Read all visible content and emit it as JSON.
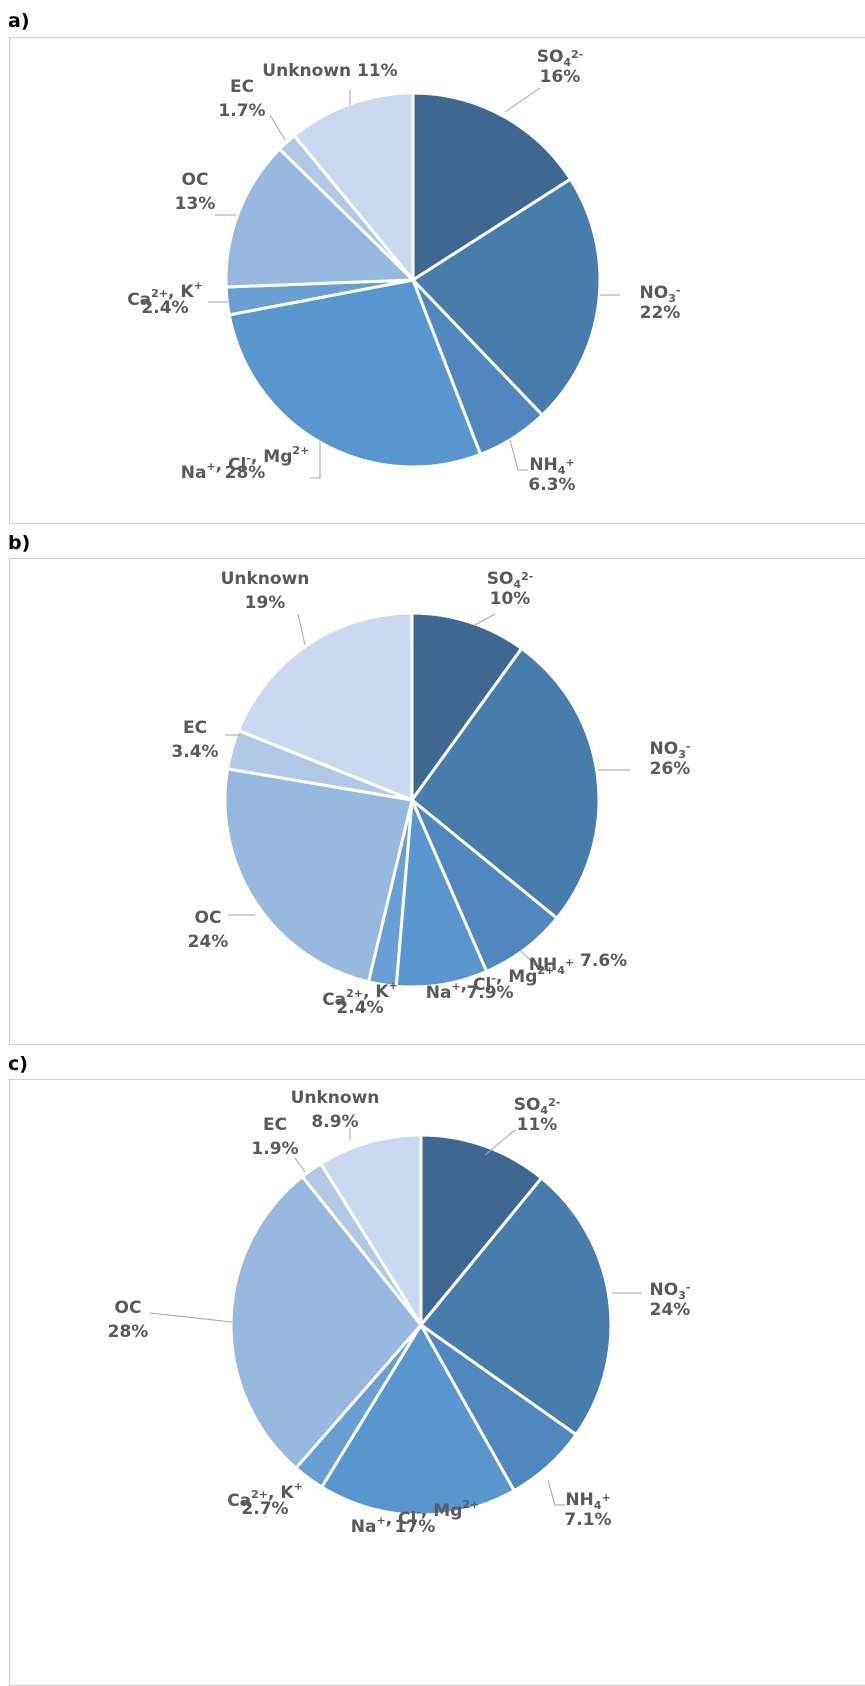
{
  "colors": {
    "so4": "#3e6891",
    "no3": "#487cab",
    "nh4": "#4f87be",
    "na": "#5996cd",
    "ca": "#6a9fd4",
    "oc": "#97b8df",
    "ec": "#b1c9e6",
    "unknown": "#c9d9ef"
  },
  "chart_data": [
    {
      "type": "pie",
      "panel": "a)",
      "start": "12 o'clock, clockwise",
      "slices": [
        {
          "key": "so4",
          "label": "SO4 2-",
          "main": "SO",
          "sub": "4",
          "sup": "2-",
          "rest": "",
          "value": 16,
          "display": "16%"
        },
        {
          "key": "no3",
          "label": "NO3 -",
          "main": "NO",
          "sub": "3",
          "sup": "-",
          "rest": "",
          "value": 22,
          "display": "22%"
        },
        {
          "key": "nh4",
          "label": "NH4 +",
          "main": "NH",
          "sub": "4",
          "sup": "+",
          "rest": "",
          "value": 6.3,
          "display": "6.3%"
        },
        {
          "key": "na",
          "label": "Na+, Cl-, Mg2+",
          "value": 28,
          "display": "28%"
        },
        {
          "key": "ca",
          "label": "Ca2+, K+",
          "value": 2.4,
          "display": "2.4%"
        },
        {
          "key": "oc",
          "label": "OC",
          "value": 13,
          "display": "13%"
        },
        {
          "key": "ec",
          "label": "EC",
          "value": 1.7,
          "display": "1.7%"
        },
        {
          "key": "unknown",
          "label": "Unknown",
          "value": 11,
          "display": "11%"
        }
      ]
    },
    {
      "type": "pie",
      "panel": "b)",
      "start": "12 o'clock, clockwise",
      "slices": [
        {
          "key": "so4",
          "label": "SO4 2-",
          "value": 10,
          "display": "10%"
        },
        {
          "key": "no3",
          "label": "NO3 -",
          "value": 26,
          "display": "26%"
        },
        {
          "key": "nh4",
          "label": "NH4 +",
          "value": 7.6,
          "display": "7.6%"
        },
        {
          "key": "na",
          "label": "Na+, Cl-, Mg2+",
          "value": 7.9,
          "display": "7.9%"
        },
        {
          "key": "ca",
          "label": "Ca2+, K+",
          "value": 2.4,
          "display": "2.4%"
        },
        {
          "key": "oc",
          "label": "OC",
          "value": 24,
          "display": "24%"
        },
        {
          "key": "ec",
          "label": "EC",
          "value": 3.4,
          "display": "3.4%"
        },
        {
          "key": "unknown",
          "label": "Unknown",
          "value": 19,
          "display": "19%"
        }
      ]
    },
    {
      "type": "pie",
      "panel": "c)",
      "start": "12 o'clock, clockwise",
      "slices": [
        {
          "key": "so4",
          "label": "SO4 2-",
          "value": 11,
          "display": "11%"
        },
        {
          "key": "no3",
          "label": "NO3 -",
          "value": 24,
          "display": "24%"
        },
        {
          "key": "nh4",
          "label": "NH4 +",
          "value": 7.1,
          "display": "7.1%"
        },
        {
          "key": "na",
          "label": "Na+, Cl-, Mg2+",
          "value": 17,
          "display": "17%"
        },
        {
          "key": "ca",
          "label": "Ca2+, K+",
          "value": 2.7,
          "display": "2.7%"
        },
        {
          "key": "oc",
          "label": "OC",
          "value": 28,
          "display": "28%"
        },
        {
          "key": "ec",
          "label": "EC",
          "value": 1.9,
          "display": "1.9%"
        },
        {
          "key": "unknown",
          "label": "Unknown",
          "value": 8.9,
          "display": "8.9%"
        }
      ]
    }
  ]
}
